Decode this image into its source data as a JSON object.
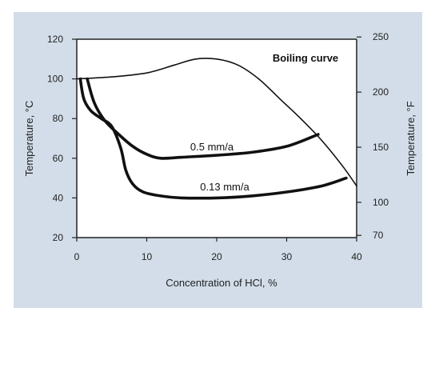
{
  "chart_data": {
    "type": "line",
    "xlabel": "Concentration of HCl, %",
    "ylabel": "Temperature, °C",
    "ylabel_right": "Temperature, °F",
    "xlim": [
      0,
      40
    ],
    "ylim": [
      20,
      120
    ],
    "xticks": [
      "0",
      "10",
      "20",
      "30",
      "40"
    ],
    "yticks_left": [
      "20",
      "40",
      "60",
      "80",
      "100",
      "120"
    ],
    "yticks_right": [
      "70",
      "100",
      "150",
      "200",
      "250"
    ],
    "grid": false,
    "series": [
      {
        "name": "Boiling curve",
        "x": [
          0,
          5,
          10,
          14,
          17,
          20,
          23,
          26,
          29,
          32,
          35,
          38,
          40
        ],
        "y": [
          100,
          101,
          103,
          107,
          110,
          110,
          107,
          100,
          90,
          80,
          69,
          56,
          46
        ]
      },
      {
        "name": "0.5 mm/a",
        "x": [
          1.5,
          2.5,
          4,
          6,
          8,
          10,
          12,
          15,
          20,
          25,
          30,
          34.5
        ],
        "y": [
          100,
          88,
          79,
          72,
          66,
          62,
          60,
          60.5,
          61.5,
          63,
          66,
          72
        ]
      },
      {
        "name": "0.13 mm/a",
        "x": [
          0.5,
          1,
          2,
          3.5,
          5,
          6.3,
          7,
          8,
          9.5,
          12,
          15,
          20,
          25,
          30,
          35,
          38.5
        ],
        "y": [
          100,
          90,
          84,
          80,
          76,
          65,
          54,
          47,
          43,
          41,
          40,
          40,
          41,
          43,
          46,
          50
        ]
      }
    ],
    "annotations": [
      "Boiling curve",
      "0.5 mm/a",
      "0.13 mm/a"
    ]
  }
}
